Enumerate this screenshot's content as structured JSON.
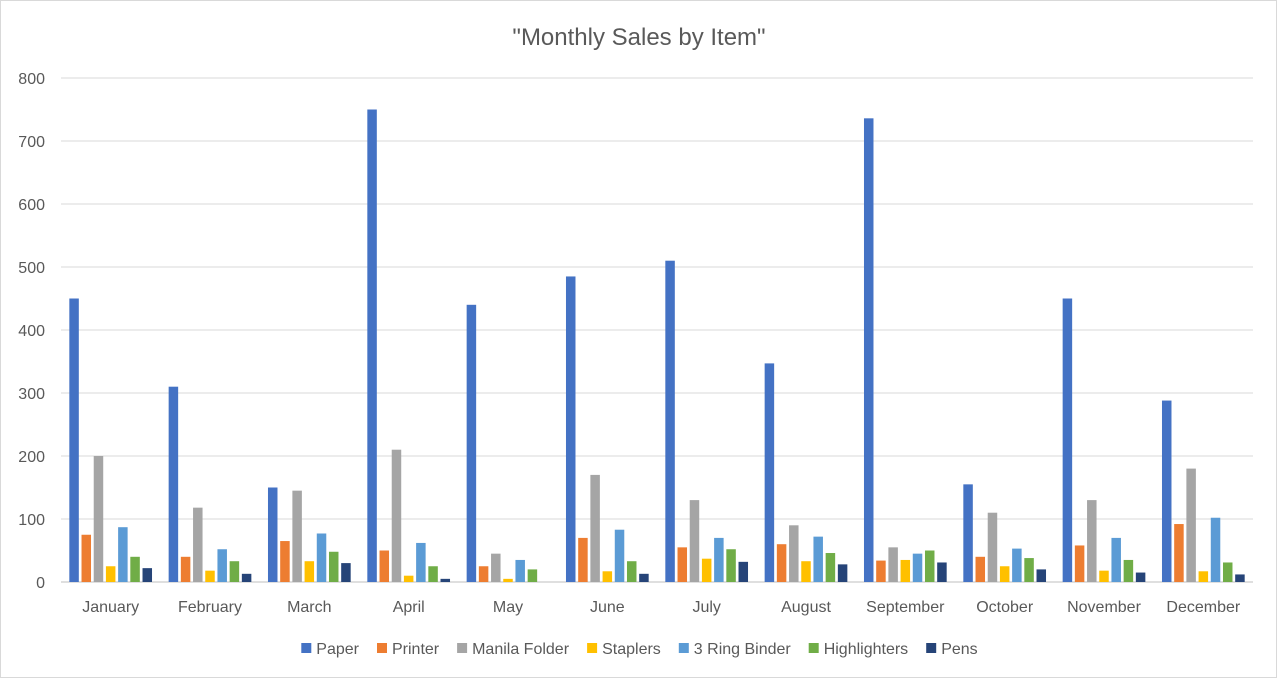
{
  "chart_data": {
    "type": "bar",
    "title": "\"Monthly Sales by Item\"",
    "xlabel": "",
    "ylabel": "",
    "ylim": [
      0,
      800
    ],
    "yticks": [
      0,
      100,
      200,
      300,
      400,
      500,
      600,
      700,
      800
    ],
    "grid": true,
    "legend_position": "bottom",
    "categories": [
      "January",
      "February",
      "March",
      "April",
      "May",
      "June",
      "July",
      "August",
      "September",
      "October",
      "November",
      "December"
    ],
    "series": [
      {
        "name": "Paper",
        "color": "#4472C4",
        "values": [
          450,
          310,
          150,
          750,
          440,
          485,
          510,
          347,
          736,
          155,
          450,
          288
        ]
      },
      {
        "name": "Printer",
        "color": "#ED7D31",
        "values": [
          75,
          40,
          65,
          50,
          25,
          70,
          55,
          60,
          34,
          40,
          58,
          92
        ]
      },
      {
        "name": "Manila Folder",
        "color": "#A5A5A5",
        "values": [
          200,
          118,
          145,
          210,
          45,
          170,
          130,
          90,
          55,
          110,
          130,
          180
        ]
      },
      {
        "name": "Staplers",
        "color": "#FFC000",
        "values": [
          25,
          18,
          33,
          10,
          5,
          17,
          37,
          33,
          35,
          25,
          18,
          17
        ]
      },
      {
        "name": "3 Ring Binder",
        "color": "#5B9BD5",
        "values": [
          87,
          52,
          77,
          62,
          35,
          83,
          70,
          72,
          45,
          53,
          70,
          102
        ]
      },
      {
        "name": "Highlighters",
        "color": "#70AD47",
        "values": [
          40,
          33,
          48,
          25,
          20,
          33,
          52,
          46,
          50,
          38,
          35,
          31
        ]
      },
      {
        "name": "Pens",
        "color": "#264478",
        "values": [
          22,
          13,
          30,
          5,
          0,
          13,
          32,
          28,
          31,
          20,
          15,
          12
        ]
      }
    ]
  }
}
